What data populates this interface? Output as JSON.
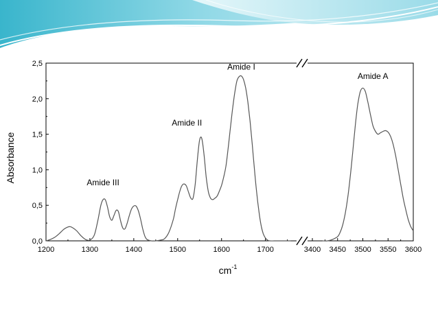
{
  "theme": {
    "banner_light": "#cfeef4",
    "banner_mid": "#7fd3e3",
    "banner_dark": "#2bb0c9",
    "line_color": "#555555"
  },
  "chart_data": {
    "type": "line",
    "title": "",
    "xlabel": "cm",
    "xlabel_superscript": "-1",
    "ylabel": "Absorbance",
    "ylim": [
      0,
      2.5
    ],
    "ytick_labels": [
      "0,0",
      "0,5",
      "1,0",
      "1,5",
      "2,0",
      "2,5"
    ],
    "ytick_values": [
      0,
      0.5,
      1.0,
      1.5,
      2.0,
      2.5
    ],
    "broken_axis": true,
    "x_segments": [
      {
        "xlim": [
          1200,
          1760
        ],
        "tick_values": [
          1200,
          1300,
          1400,
          1500,
          1600,
          1700
        ],
        "tick_labels": [
          "1200",
          "1300",
          "1400",
          "1500",
          "1600",
          "1700"
        ]
      },
      {
        "xlim": [
          3400,
          3600
        ],
        "tick_values": [
          3400,
          3450,
          3500,
          3550,
          3600
        ],
        "tick_labels": [
          "3400",
          "3450",
          "3500",
          "3550",
          "3600"
        ]
      }
    ],
    "series": [
      {
        "segment": 0,
        "x": [
          1200,
          1210,
          1220,
          1230,
          1240,
          1248,
          1255,
          1262,
          1270,
          1280,
          1290,
          1300,
          1310,
          1318,
          1325,
          1330,
          1335,
          1340,
          1345,
          1350,
          1355,
          1360,
          1365,
          1370,
          1375,
          1380,
          1385,
          1390,
          1395,
          1400,
          1405,
          1410,
          1415,
          1420,
          1425,
          1430,
          1440,
          1450,
          1460,
          1470,
          1480,
          1490,
          1495,
          1500,
          1505,
          1510,
          1515,
          1520,
          1525,
          1530,
          1535,
          1540,
          1545,
          1550,
          1555,
          1560,
          1565,
          1570,
          1575,
          1580,
          1585,
          1590,
          1595,
          1600,
          1605,
          1610,
          1615,
          1620,
          1625,
          1630,
          1635,
          1640,
          1645,
          1650,
          1655,
          1660,
          1665,
          1670,
          1675,
          1680,
          1685,
          1690,
          1695,
          1700,
          1705,
          1710,
          1720,
          1730,
          1740,
          1750,
          1758
        ],
        "y": [
          0.0,
          0.02,
          0.05,
          0.1,
          0.16,
          0.19,
          0.2,
          0.18,
          0.14,
          0.07,
          0.02,
          0.01,
          0.08,
          0.28,
          0.5,
          0.58,
          0.58,
          0.48,
          0.34,
          0.29,
          0.36,
          0.43,
          0.41,
          0.28,
          0.18,
          0.17,
          0.25,
          0.36,
          0.45,
          0.49,
          0.49,
          0.43,
          0.32,
          0.18,
          0.07,
          0.02,
          0.0,
          0.0,
          0.01,
          0.03,
          0.12,
          0.3,
          0.45,
          0.58,
          0.7,
          0.78,
          0.8,
          0.77,
          0.68,
          0.6,
          0.6,
          0.8,
          1.15,
          1.42,
          1.44,
          1.22,
          0.9,
          0.69,
          0.6,
          0.58,
          0.6,
          0.63,
          0.7,
          0.78,
          0.9,
          1.05,
          1.3,
          1.58,
          1.85,
          2.08,
          2.25,
          2.31,
          2.32,
          2.27,
          2.15,
          1.95,
          1.68,
          1.35,
          1.0,
          0.68,
          0.42,
          0.22,
          0.1,
          0.04,
          0.01,
          0.0,
          0.0,
          0.0,
          0.0,
          0.0,
          0.0
        ]
      },
      {
        "segment": 1,
        "x": [
          3420,
          3430,
          3440,
          3450,
          3455,
          3460,
          3465,
          3470,
          3475,
          3480,
          3485,
          3490,
          3495,
          3500,
          3505,
          3510,
          3515,
          3520,
          3525,
          3530,
          3535,
          3540,
          3545,
          3550,
          3555,
          3560,
          3565,
          3570,
          3575,
          3580,
          3585,
          3590,
          3595,
          3600
        ],
        "y": [
          0.0,
          0.0,
          0.02,
          0.06,
          0.12,
          0.22,
          0.38,
          0.6,
          0.9,
          1.25,
          1.62,
          1.92,
          2.1,
          2.15,
          2.1,
          1.95,
          1.78,
          1.62,
          1.54,
          1.5,
          1.52,
          1.54,
          1.55,
          1.53,
          1.47,
          1.36,
          1.2,
          1.0,
          0.8,
          0.6,
          0.44,
          0.3,
          0.2,
          0.14
        ]
      }
    ],
    "annotations": [
      {
        "text": "Amide III",
        "segment": 0,
        "x": 1330,
        "y": 0.78
      },
      {
        "text": "Amide II",
        "segment": 0,
        "x": 1521,
        "y": 1.62
      },
      {
        "text": "Amide I",
        "segment": 0,
        "x": 1645,
        "y": 2.41
      },
      {
        "text": "Amide A",
        "segment": 1,
        "x": 3520,
        "y": 2.28
      }
    ]
  }
}
